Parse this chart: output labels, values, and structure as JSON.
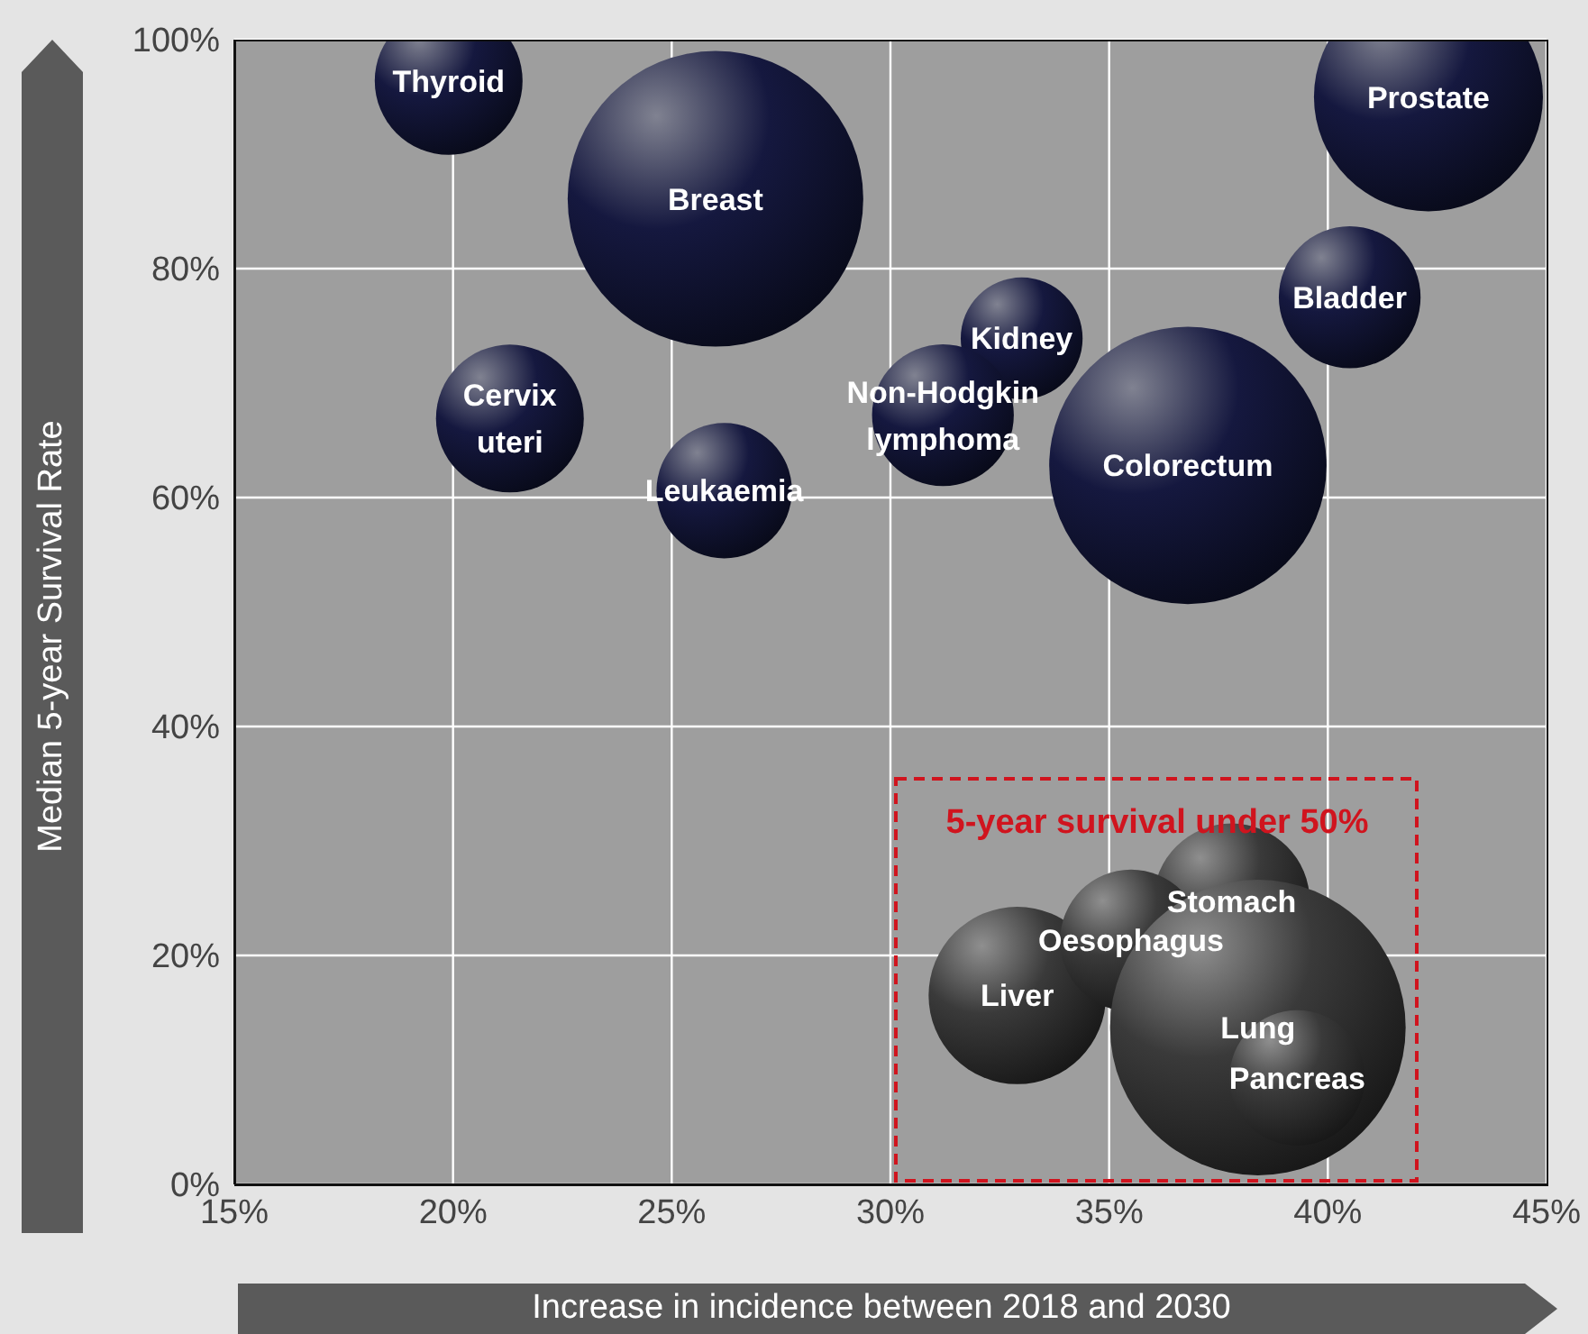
{
  "chart_data": {
    "type": "bubble",
    "xlabel": "Increase in incidence between 2018 and 2030",
    "ylabel": "Median 5-year Survival Rate",
    "xlim": [
      15,
      45
    ],
    "ylim": [
      0,
      100
    ],
    "xticks": [
      {
        "value": 15,
        "label": "15%"
      },
      {
        "value": 20,
        "label": "20%"
      },
      {
        "value": 25,
        "label": "25%"
      },
      {
        "value": 30,
        "label": "30%"
      },
      {
        "value": 35,
        "label": "35%"
      },
      {
        "value": 40,
        "label": "40%"
      },
      {
        "value": 45,
        "label": "45%"
      }
    ],
    "yticks": [
      {
        "value": 0,
        "label": "0%"
      },
      {
        "value": 20,
        "label": "20%"
      },
      {
        "value": 40,
        "label": "40%"
      },
      {
        "value": 60,
        "label": "60%"
      },
      {
        "value": 80,
        "label": "80%"
      },
      {
        "value": 100,
        "label": "100%"
      }
    ],
    "grid": true,
    "legend": false,
    "series": [
      {
        "color": "#15183f",
        "x": [
          19.9,
          26.0,
          42.3,
          40.5,
          21.3,
          26.2,
          33.0,
          31.2,
          36.8
        ],
        "values": [
          96.4,
          86.1,
          95.0,
          77.5,
          66.9,
          60.6,
          73.9,
          67.2,
          62.8
        ],
        "sizes": [
          0.25,
          1,
          0.6,
          0.23,
          0.25,
          0.21,
          0.17,
          0.23,
          0.88
        ]
      },
      {
        "color": "#3a3a3a",
        "x": [
          37.8,
          32.9,
          35.5,
          38.4,
          39.3
        ],
        "values": [
          24.7,
          16.5,
          21.3,
          13.7,
          9.3
        ],
        "sizes": [
          0.28,
          0.36,
          0.23,
          1,
          0.21
        ]
      }
    ],
    "annotations": [
      "5-year survival under 50%",
      {
        "text": "Thyroid",
        "x": 19.9,
        "y": 96.4
      },
      {
        "text": "Breast",
        "x": 26.0,
        "y": 86.1
      },
      {
        "text": "Prostate",
        "x": 42.3,
        "y": 95.0
      },
      {
        "text": "Bladder",
        "x": 40.5,
        "y": 77.5
      },
      {
        "text": "Cervix uteri",
        "x": 21.3,
        "y": 66.9
      },
      {
        "text": "Leukaemia",
        "x": 26.2,
        "y": 60.6
      },
      {
        "text": "Kidney",
        "x": 33.0,
        "y": 73.9
      },
      {
        "text": "Non-Hodgkin lymphoma",
        "x": 31.2,
        "y": 67.2
      },
      {
        "text": "Colorectum",
        "x": 36.8,
        "y": 62.8
      },
      {
        "text": "Stomach",
        "x": 37.8,
        "y": 24.7
      },
      {
        "text": "Liver",
        "x": 32.9,
        "y": 16.5
      },
      {
        "text": "Oesophagus",
        "x": 35.5,
        "y": 21.3
      },
      {
        "text": "Lung",
        "x": 38.4,
        "y": 13.7
      },
      {
        "text": "Pancreas",
        "x": 39.3,
        "y": 9.3
      }
    ]
  }
}
